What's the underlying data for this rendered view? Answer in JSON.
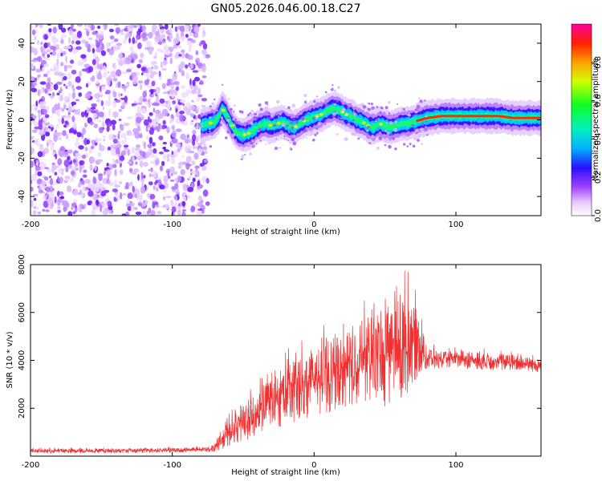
{
  "title": "GN05.2026.046.00.18.C27",
  "chart_data": [
    {
      "type": "heatmap",
      "name": "spectrogram",
      "xlabel": "Height of straight line (km)",
      "ylabel": "Frequency (Hz)",
      "xlim": [
        -200,
        160
      ],
      "ylim": [
        -50,
        50
      ],
      "xticks": [
        "-200",
        "-100",
        "0",
        "100"
      ],
      "yticks": [
        "40",
        "20",
        "0",
        "-20",
        "-40"
      ],
      "noise_region_km": [
        -200,
        -75
      ],
      "ridge": {
        "x": [
          -80,
          -75,
          -70,
          -67,
          -65,
          -62,
          -58,
          -54,
          -50,
          -46,
          -42,
          -38,
          -34,
          -30,
          -26,
          -22,
          -18,
          -14,
          -10,
          -6,
          -2,
          2,
          6,
          10,
          14,
          18,
          22,
          26,
          30,
          34,
          38,
          42,
          46,
          50,
          54,
          58,
          62,
          66,
          70,
          75,
          80,
          90,
          100,
          110,
          120,
          130,
          140,
          150,
          160
        ],
        "y": [
          -3,
          -2,
          -1,
          2,
          6,
          3,
          -3,
          -7,
          -8,
          -7,
          -5,
          -3,
          -2,
          -3,
          -2,
          -1,
          -3,
          -4,
          -2,
          0,
          1,
          2,
          3,
          5,
          6,
          5,
          3,
          2,
          0,
          -1,
          -3,
          -4,
          -2,
          -3,
          -4,
          -3,
          -2,
          -2,
          -1,
          0,
          1,
          2,
          2,
          2,
          2,
          2,
          1,
          1,
          1
        ]
      },
      "colorbar": {
        "label": "Normalized spectral amplitude",
        "range": [
          0.0,
          1.0
        ],
        "ticks": [
          "0.0",
          "0.2",
          "0.4",
          "0.6",
          "0.8"
        ]
      }
    },
    {
      "type": "line",
      "name": "snr",
      "xlabel": "Height of straight line (km)",
      "ylabel": "SNR (10 * v/v)",
      "xlim": [
        -200,
        160
      ],
      "ylim": [
        0,
        8000
      ],
      "xticks": [
        "-200",
        "-100",
        "0",
        "100"
      ],
      "yticks": [
        "2000",
        "4000",
        "6000",
        "8000"
      ],
      "color": "#f03030",
      "envelope": {
        "x": [
          -200,
          -150,
          -100,
          -75,
          -70,
          -60,
          -50,
          -40,
          -30,
          -20,
          -10,
          0,
          10,
          20,
          30,
          40,
          50,
          60,
          65,
          70,
          75,
          80,
          90,
          100,
          120,
          140,
          160
        ],
        "lo": [
          120,
          130,
          150,
          180,
          200,
          400,
          600,
          900,
          1100,
          1300,
          1500,
          1600,
          1800,
          2000,
          2200,
          2300,
          2000,
          2200,
          2300,
          3000,
          3500,
          3600,
          3700,
          3700,
          3600,
          3600,
          3500
        ],
        "hi": [
          350,
          360,
          380,
          420,
          600,
          1800,
          2500,
          3200,
          3800,
          4500,
          4900,
          5200,
          5600,
          5800,
          6200,
          6800,
          7200,
          7600,
          8000,
          7400,
          6000,
          4800,
          4500,
          4600,
          4500,
          4400,
          4200
        ]
      }
    }
  ]
}
